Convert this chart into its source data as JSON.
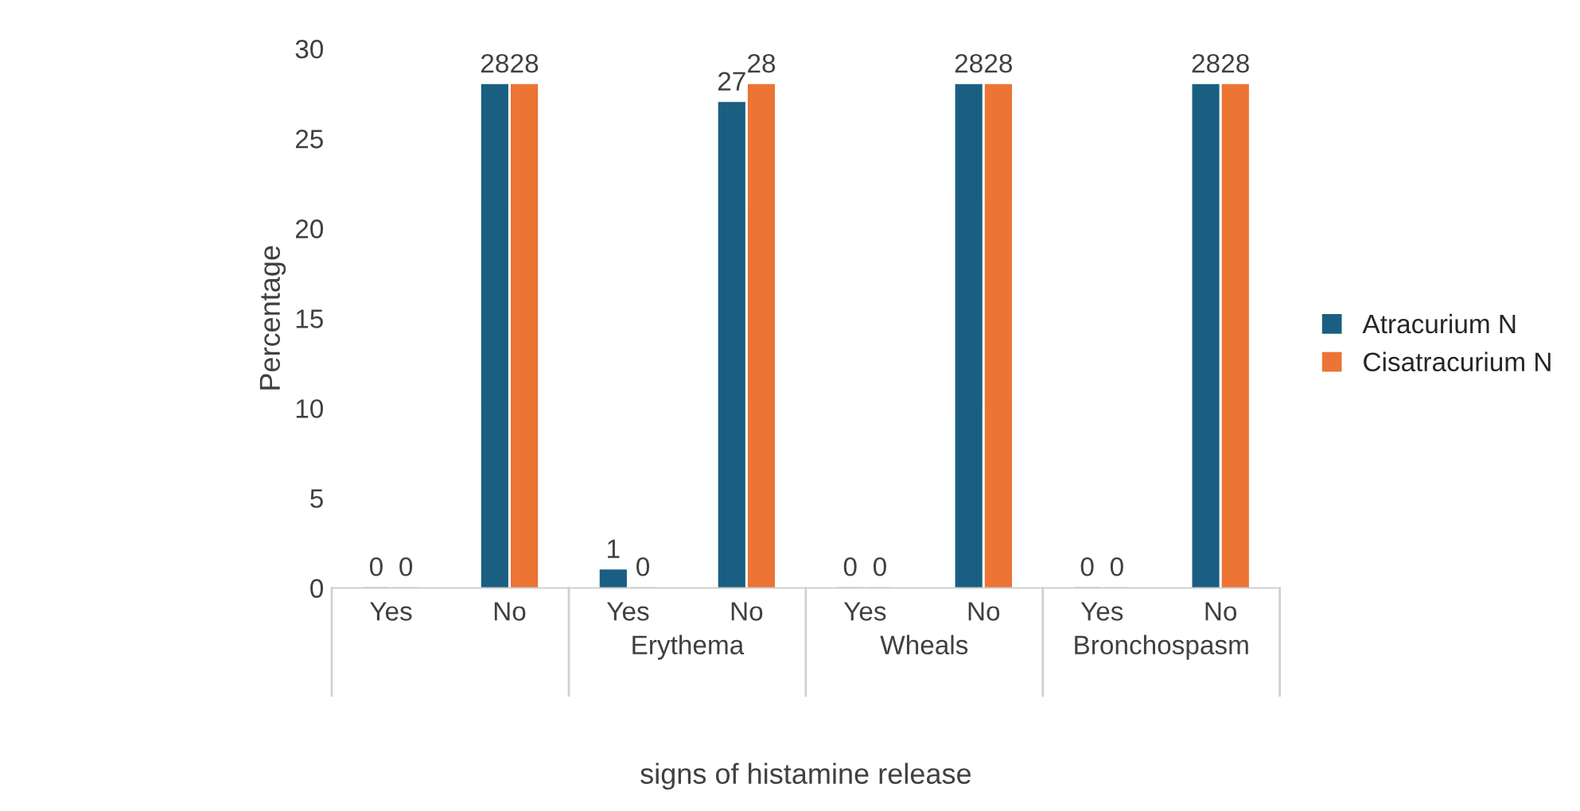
{
  "chart_data": {
    "type": "bar",
    "xlabel": "signs of histamine release",
    "ylabel": "Percentage",
    "categories": [
      "Yes",
      "No",
      "Yes",
      "No",
      "Yes",
      "No",
      "Yes",
      "No"
    ],
    "series": [
      {
        "name": "Atracurium N",
        "color": "#1a5f82",
        "values": [
          0,
          28,
          1,
          27,
          0,
          28,
          0,
          28
        ]
      },
      {
        "name": "Cisatracurium N",
        "color": "#ec7434",
        "values": [
          0,
          28,
          0,
          28,
          0,
          28,
          0,
          28
        ]
      }
    ],
    "annotations": [
      "Erythema",
      "Wheals",
      "Bronchospasm"
    ],
    "ylim": [
      0,
      30
    ],
    "yticks": [
      0,
      5,
      10,
      15,
      20,
      25,
      30
    ],
    "grid": false,
    "legend": "right",
    "data_labels": true
  }
}
